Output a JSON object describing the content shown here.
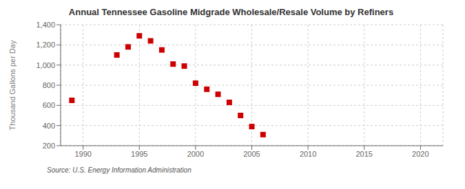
{
  "chart_data": {
    "type": "scatter",
    "title": "Annual Tennessee Gasoline Midgrade Wholesale/Resale Volume by Refiners",
    "ylabel": "Thousand Gallons per Day",
    "annotations": [
      "Source: U.S. Energy Information Administration"
    ],
    "x": [
      1989,
      1993,
      1994,
      1995,
      1996,
      1997,
      1998,
      1999,
      2000,
      2001,
      2002,
      2003,
      2004,
      2005,
      2006
    ],
    "values": [
      650,
      1100,
      1180,
      1290,
      1240,
      1150,
      1010,
      990,
      820,
      760,
      710,
      630,
      500,
      390,
      310
    ],
    "color": "#cc0000",
    "marker": "square",
    "xlim": [
      1988,
      2022
    ],
    "ylim": [
      200,
      1400
    ],
    "xticks": [
      1990,
      1995,
      2000,
      2005,
      2010,
      2015,
      2020
    ],
    "yticks": [
      200,
      400,
      600,
      800,
      {
        "value": 1000,
        "label": "1,000"
      },
      {
        "value": 1200,
        "label": "1,200"
      },
      {
        "value": 1400,
        "label": "1,400"
      }
    ],
    "grid": true
  }
}
